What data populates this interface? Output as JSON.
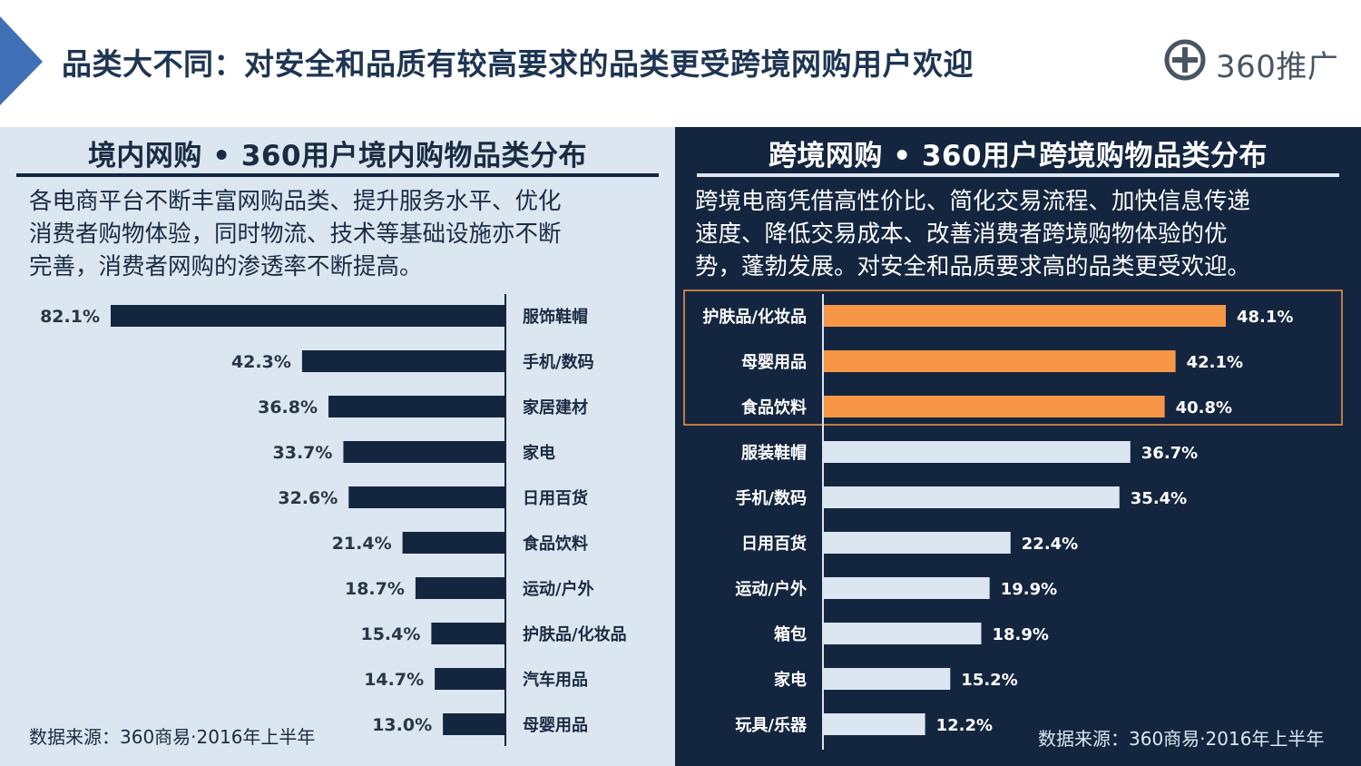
{
  "header": {
    "title": "品类大不同：对安全和品质有较高要求的品类更受跨境网购用户欢迎",
    "logo_text": "360推广",
    "colors": {
      "accent": "#3f6fb5",
      "title": "#1e3553"
    }
  },
  "left_panel": {
    "title": "境内网购 • 360用户境内购物品类分布",
    "description_lines": [
      "各电商平台不断丰富网购品类、提升服务水平、优化",
      "消费者购物体验，同时物流、技术等基础设施亦不断",
      "完善，消费者网购的渗透率不断提高。"
    ],
    "source": "数据来源：360商易·2016年上半年"
  },
  "right_panel": {
    "title": "跨境网购 • 360用户跨境购物品类分布",
    "description_lines": [
      "跨境电商凭借高性价比、简化交易流程、加快信息传递",
      "速度、降低交易成本、改善消费者跨境购物体验的优",
      "势，蓬勃发展。对安全和品质要求高的品类更受欢迎。"
    ],
    "source": "数据来源：360商易·2016年上半年"
  },
  "chart_data": [
    {
      "type": "bar",
      "orientation": "horizontal",
      "direction": "right-to-left",
      "title": "境内网购 • 360用户境内购物品类分布",
      "categories": [
        "服饰鞋帽",
        "手机/数码",
        "家居建材",
        "家电",
        "日用百货",
        "食品饮料",
        "运动/户外",
        "护肤品/化妆品",
        "汽车用品",
        "母婴用品"
      ],
      "values": [
        82.1,
        42.3,
        36.8,
        33.7,
        32.6,
        21.4,
        18.7,
        15.4,
        14.7,
        13.0
      ],
      "value_labels": [
        "82.1%",
        "42.3%",
        "36.8%",
        "33.7%",
        "32.6%",
        "21.4%",
        "18.7%",
        "15.4%",
        "14.7%",
        "13.0%"
      ],
      "unit": "%",
      "xlim": [
        0,
        82.1
      ],
      "grid": false,
      "colors": {
        "bar": "#14263f",
        "axis": "#14263f",
        "label": "#1a2b42",
        "value": "#2a3545"
      }
    },
    {
      "type": "bar",
      "orientation": "horizontal",
      "direction": "left-to-right",
      "title": "跨境网购 • 360用户跨境购物品类分布",
      "categories": [
        "护肤品/化妆品",
        "母婴用品",
        "食品饮料",
        "服装鞋帽",
        "手机/数码",
        "日用百货",
        "运动/户外",
        "箱包",
        "家电",
        "玩具/乐器"
      ],
      "values": [
        48.1,
        42.1,
        40.8,
        36.7,
        35.4,
        22.4,
        19.9,
        18.9,
        15.2,
        12.2
      ],
      "value_labels": [
        "48.1%",
        "42.1%",
        "40.8%",
        "36.7%",
        "35.4%",
        "22.4%",
        "19.9%",
        "18.9%",
        "15.2%",
        "12.2%"
      ],
      "unit": "%",
      "xlim": [
        0,
        48.1
      ],
      "grid": false,
      "highlighted_count": 3,
      "colors": {
        "bar": "#dce6f1",
        "highlight_bar": "#f79646",
        "highlight_box": "#f79646",
        "axis": "#dce6f1",
        "label": "#ffffff",
        "value": "#ffffff"
      }
    }
  ]
}
